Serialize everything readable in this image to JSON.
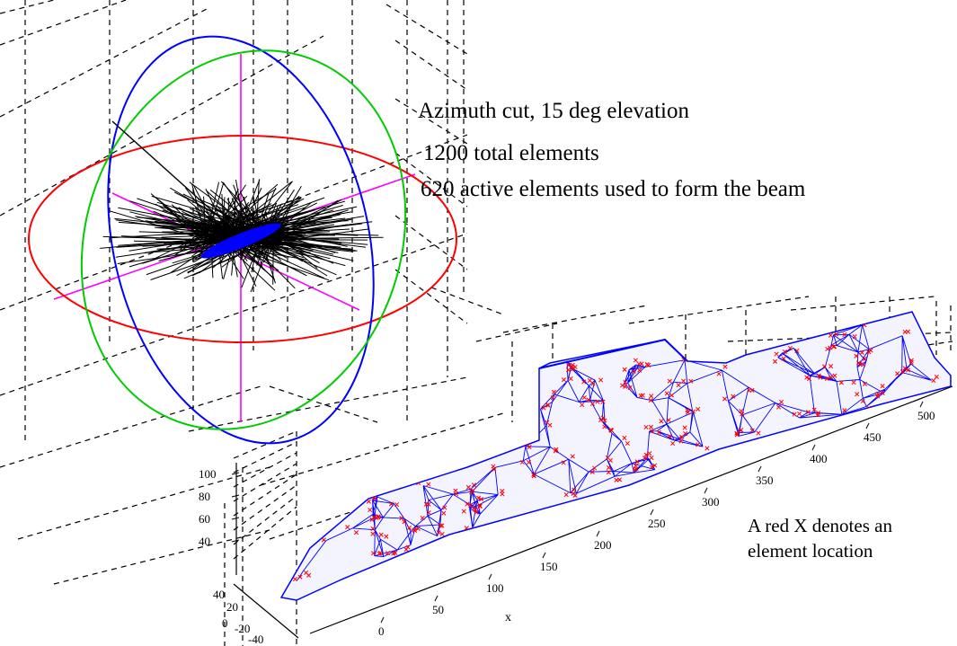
{
  "annotations": {
    "line1": "Azimuth cut, 15 deg elevation",
    "line2": "1200 total elements",
    "line3": "620 active elements used to form the beam",
    "note_line1": "A red X denotes an",
    "note_line2": "element location"
  },
  "axes": {
    "x_label": "x",
    "x_ticks": [
      "0",
      "50",
      "100",
      "150",
      "200",
      "250",
      "300",
      "350",
      "400",
      "450",
      "500"
    ],
    "z_ticks": [
      "100",
      "80",
      "60",
      "40"
    ],
    "y_ticks": [
      "40",
      "20",
      "0",
      "-20",
      "-40"
    ]
  },
  "colors": {
    "ring_horizontal": "#ff0000",
    "ring_tilted_a": "#0000ff",
    "ring_tilted_b": "#00cc00",
    "axes_lines": "#ff00ff",
    "mesh": "#0000ff",
    "element_marker": "#ff0000",
    "beam_spikes": "#000000",
    "grid": "#000000"
  }
}
